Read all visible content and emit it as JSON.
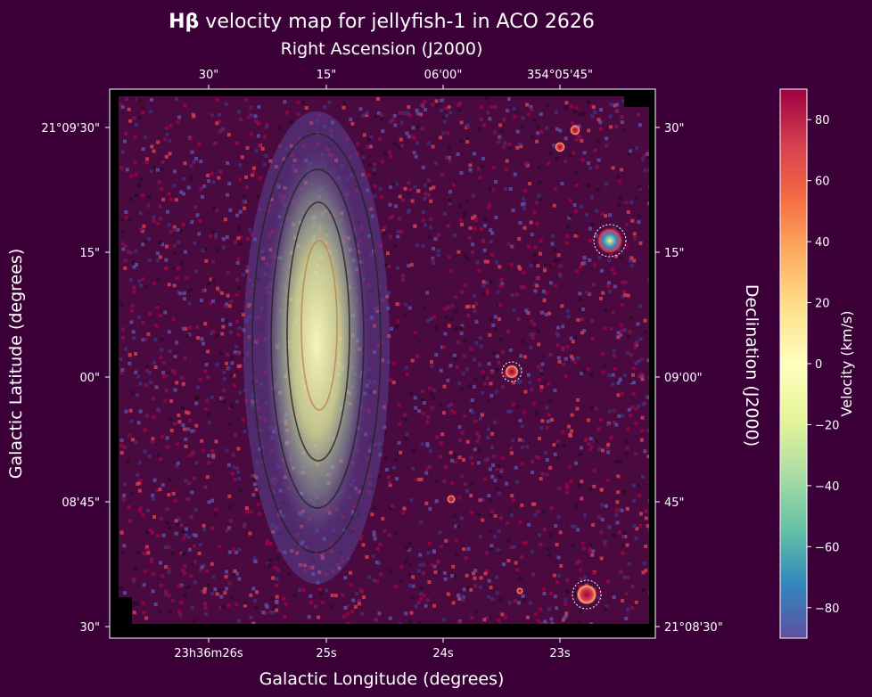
{
  "chart_data": {
    "type": "heatmap",
    "title_bold": "Hβ",
    "title_rest": " velocity map for jellyfish-1 in ACO 2626",
    "top_axis_label": "Right Ascension (J2000)",
    "right_axis_label": "Declination (J2000)",
    "bottom_axis_label": "Galactic Longitude (degrees)",
    "left_axis_label": "Galactic Latitude (degrees)",
    "top_ticks": [
      "30\"",
      "15\"",
      "06'00\"",
      "354°05'45\""
    ],
    "bottom_ticks": [
      "23h36m26s",
      "25s",
      "24s",
      "23s"
    ],
    "left_ticks": [
      "21°09'30\"",
      "15\"",
      "00\"",
      "08'45\"",
      "30\""
    ],
    "right_ticks": [
      "30\"",
      "15\"",
      "09'00\"",
      "45\"",
      "21°08'30\""
    ],
    "colorbar": {
      "label": "Velocity (km/s)",
      "colormap": "Spectral_r",
      "vmin": -90,
      "vmax": 90,
      "ticks": [
        80,
        60,
        40,
        20,
        0,
        -20,
        -40,
        -60,
        -80
      ]
    },
    "colors": {
      "background": "#3c0039",
      "low": "#5e4fa2",
      "mid": "#ffffbf",
      "high": "#9e0142"
    }
  }
}
